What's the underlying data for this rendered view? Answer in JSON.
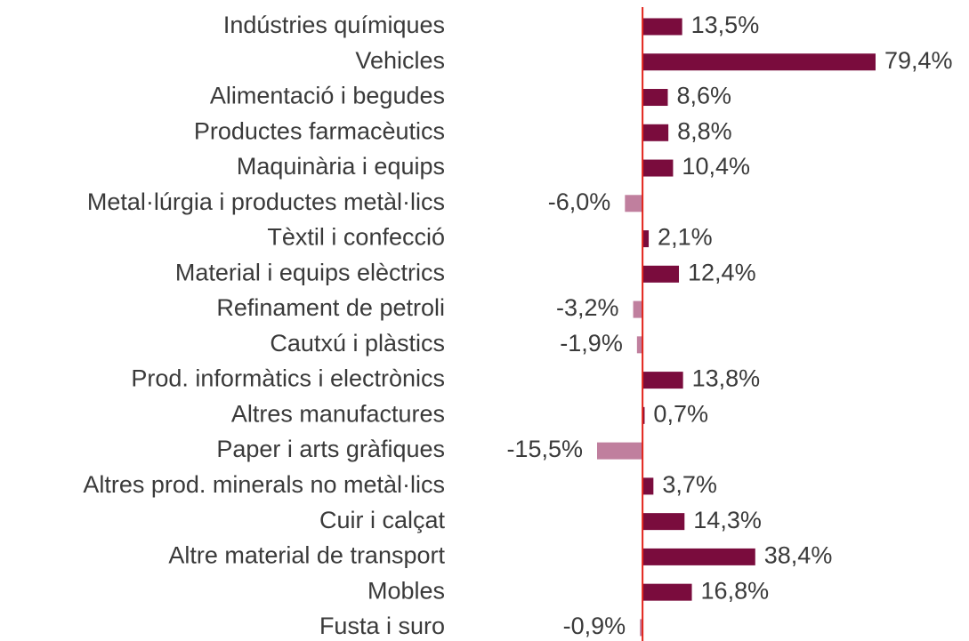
{
  "chart_data": {
    "type": "bar",
    "orientation": "horizontal",
    "categories": [
      "Indústries químiques",
      "Vehicles",
      "Alimentació i begudes",
      "Productes farmacèutics",
      "Maquinària i equips",
      "Metal·lúrgia i productes metàl·lics",
      "Tèxtil i confecció",
      "Material i equips elèctrics",
      "Refinament de petroli",
      "Cautxú i plàstics",
      "Prod. informàtics i electrònics",
      "Altres manufactures",
      "Paper i arts gràfiques",
      "Altres prod. minerals no metàl·lics",
      "Cuir i calçat",
      "Altre material de transport",
      "Mobles",
      "Fusta i suro"
    ],
    "values": [
      13.5,
      79.4,
      8.6,
      8.8,
      10.4,
      -6.0,
      2.1,
      12.4,
      -3.2,
      -1.9,
      13.8,
      0.7,
      -15.5,
      3.7,
      14.3,
      38.4,
      16.8,
      -0.9
    ],
    "value_labels": [
      "13,5%",
      "79,4%",
      "8,6%",
      "8,8%",
      "10,4%",
      "-6,0%",
      "2,1%",
      "12,4%",
      "-3,2%",
      "-1,9%",
      "13,8%",
      "0,7%",
      "-15,5%",
      "3,7%",
      "14,3%",
      "38,4%",
      "16,8%",
      "-0,9%"
    ],
    "positive_color": "#7a0c3d",
    "negative_color": "#c07f9e",
    "zero_line_color": "#e2231a"
  }
}
